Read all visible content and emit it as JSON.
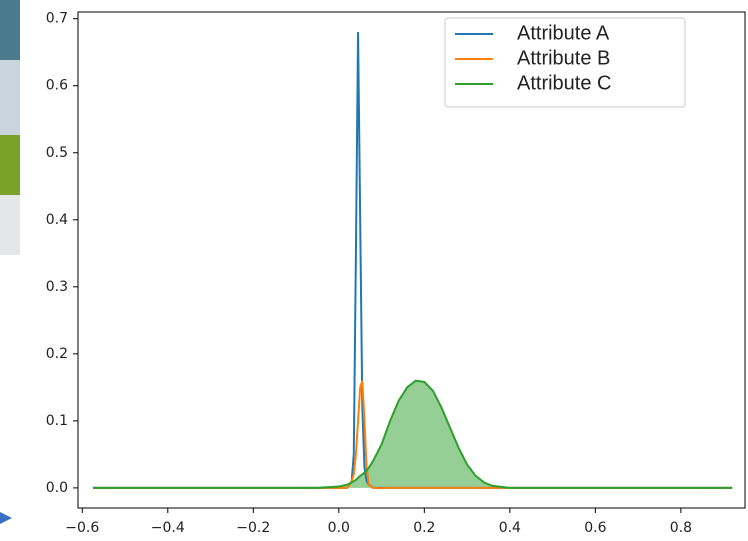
{
  "chart_data": {
    "type": "line",
    "x": [
      -0.575,
      -0.4,
      -0.2,
      -0.1,
      -0.05,
      0.0,
      0.02,
      0.03,
      0.035,
      0.04,
      0.045,
      0.05,
      0.055,
      0.06,
      0.065,
      0.07,
      0.08,
      0.1,
      0.12,
      0.14,
      0.16,
      0.18,
      0.2,
      0.22,
      0.24,
      0.26,
      0.28,
      0.3,
      0.32,
      0.34,
      0.36,
      0.4,
      0.5,
      0.7,
      0.92
    ],
    "series": [
      {
        "name": "Attribute A",
        "color": "#1f77b4",
        "values": [
          0,
          0,
          0,
          0,
          0,
          0,
          0,
          0.01,
          0.05,
          0.35,
          0.68,
          0.4,
          0.12,
          0.03,
          0.01,
          0.005,
          0,
          0,
          0,
          0,
          0,
          0,
          0,
          0,
          0,
          0,
          0,
          0,
          0,
          0,
          0,
          0,
          0,
          0,
          0
        ]
      },
      {
        "name": "Attribute B",
        "color": "#ff7f0e",
        "values": [
          0,
          0,
          0,
          0,
          0,
          0,
          0,
          0.01,
          0.02,
          0.05,
          0.1,
          0.15,
          0.16,
          0.1,
          0.03,
          0.005,
          0,
          0,
          0,
          0,
          0,
          0,
          0,
          0,
          0,
          0,
          0,
          0,
          0,
          0,
          0,
          0,
          0,
          0,
          0
        ]
      },
      {
        "name": "Attribute C",
        "color": "#2ca02c",
        "fill": true,
        "values": [
          0,
          0,
          0,
          0,
          0,
          0.002,
          0.005,
          0.008,
          0.01,
          0.012,
          0.015,
          0.018,
          0.02,
          0.023,
          0.026,
          0.03,
          0.04,
          0.065,
          0.1,
          0.13,
          0.15,
          0.16,
          0.158,
          0.145,
          0.12,
          0.09,
          0.06,
          0.035,
          0.018,
          0.008,
          0.003,
          0,
          0,
          0,
          0
        ]
      }
    ],
    "xlim": [
      -0.61,
      0.95
    ],
    "ylim": [
      -0.03,
      0.71
    ],
    "xticks": [
      {
        "value": -0.6,
        "label": "−0.6"
      },
      {
        "value": -0.4,
        "label": "−0.4"
      },
      {
        "value": -0.2,
        "label": "−0.2"
      },
      {
        "value": 0.0,
        "label": "0.0"
      },
      0.2,
      0.4,
      0.6,
      0.8
    ],
    "yticks": [
      {
        "value": 0.0,
        "label": "0.0"
      },
      0.1,
      0.2,
      0.3,
      0.4,
      0.5,
      0.6,
      0.7
    ],
    "legend": "upper right"
  }
}
